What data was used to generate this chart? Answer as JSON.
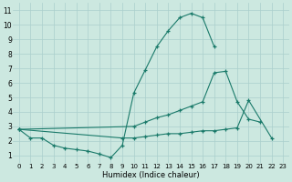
{
  "xlabel": "Humidex (Indice chaleur)",
  "bg_color": "#cce8e0",
  "grid_color": "#aacfcc",
  "line_color": "#1a7a6a",
  "xlim": [
    -0.5,
    23.5
  ],
  "ylim": [
    0.5,
    11.5
  ],
  "xticks": [
    0,
    1,
    2,
    3,
    4,
    5,
    6,
    7,
    8,
    9,
    10,
    11,
    12,
    13,
    14,
    15,
    16,
    17,
    18,
    19,
    20,
    21,
    22,
    23
  ],
  "yticks": [
    1,
    2,
    3,
    4,
    5,
    6,
    7,
    8,
    9,
    10,
    11
  ],
  "line1_x": [
    0,
    1,
    2,
    3,
    4,
    5,
    6,
    7,
    8,
    9,
    10,
    11,
    12,
    13,
    14,
    15,
    16,
    17
  ],
  "line1_y": [
    2.8,
    2.2,
    2.2,
    1.7,
    1.5,
    1.4,
    1.3,
    1.1,
    0.85,
    1.7,
    5.3,
    6.9,
    8.5,
    9.6,
    10.5,
    10.8,
    10.5,
    8.5
  ],
  "line2_x": [
    0,
    10,
    11,
    12,
    13,
    14,
    15,
    16,
    17,
    18,
    19,
    20,
    21
  ],
  "line2_y": [
    2.8,
    3.0,
    3.3,
    3.6,
    3.8,
    4.1,
    4.4,
    4.7,
    6.7,
    6.8,
    4.7,
    3.5,
    3.3
  ],
  "line3_x": [
    0,
    9,
    10,
    11,
    12,
    13,
    14,
    15,
    16,
    17,
    18,
    19,
    20,
    22
  ],
  "line3_y": [
    2.8,
    2.2,
    2.2,
    2.3,
    2.4,
    2.5,
    2.5,
    2.6,
    2.7,
    2.7,
    2.8,
    2.9,
    4.8,
    2.2
  ]
}
